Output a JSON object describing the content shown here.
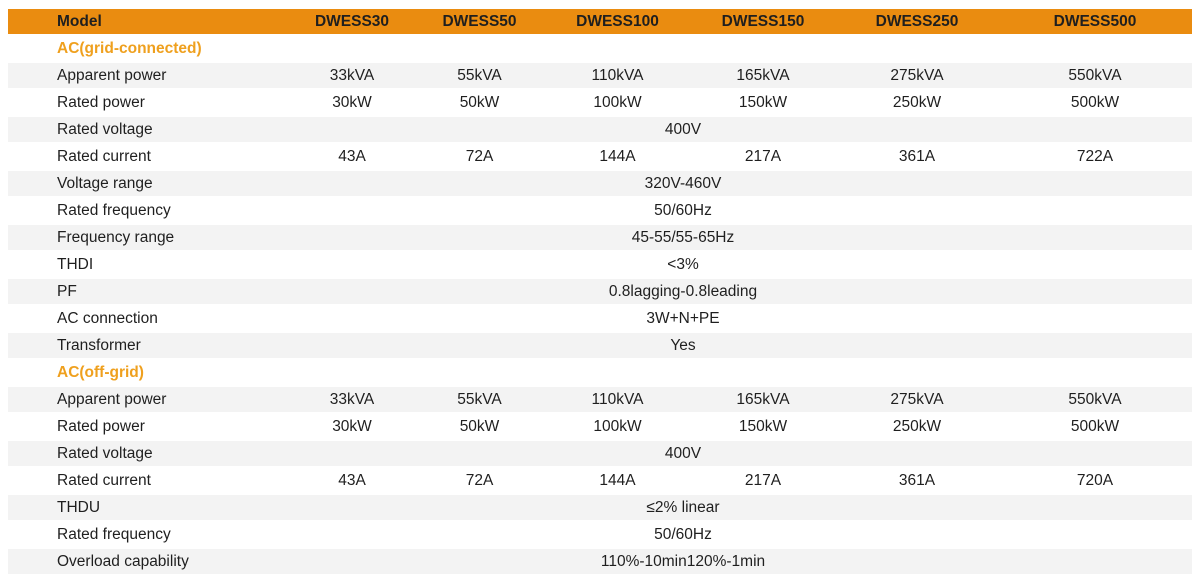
{
  "table": {
    "accent_color": "#EA8C10",
    "section_title_color": "#EFA01E",
    "stripe_color": "#F3F3F3",
    "header": {
      "model_label": "Model",
      "columns": [
        "DWESS30",
        "DWESS50",
        "DWESS100",
        "DWESS150",
        "DWESS250",
        "DWESS500"
      ]
    },
    "sections": [
      {
        "title": "AC(grid-connected)",
        "rows": [
          {
            "label": "Apparent power",
            "values": [
              "33kVA",
              "55kVA",
              "110kVA",
              "165kVA",
              "275kVA",
              "550kVA"
            ]
          },
          {
            "label": "Rated power",
            "values": [
              "30kW",
              "50kW",
              "100kW",
              "150kW",
              "250kW",
              "500kW"
            ]
          },
          {
            "label": "Rated voltage",
            "merged": "400V"
          },
          {
            "label": "Rated current",
            "values": [
              "43A",
              "72A",
              "144A",
              "217A",
              "361A",
              "722A"
            ]
          },
          {
            "label": "Voltage range",
            "merged": "320V-460V"
          },
          {
            "label": "Rated frequency",
            "merged": "50/60Hz"
          },
          {
            "label": "Frequency range",
            "merged": "45-55/55-65Hz"
          },
          {
            "label": "THDI",
            "merged": "<3%"
          },
          {
            "label": "PF",
            "merged": "0.8lagging-0.8leading"
          },
          {
            "label": "AC connection",
            "merged": "3W+N+PE"
          },
          {
            "label": "Transformer",
            "merged": "Yes"
          }
        ]
      },
      {
        "title": "AC(off-grid)",
        "rows": [
          {
            "label": "Apparent power",
            "values": [
              "33kVA",
              "55kVA",
              "110kVA",
              "165kVA",
              "275kVA",
              "550kVA"
            ]
          },
          {
            "label": "Rated power",
            "values": [
              "30kW",
              "50kW",
              "100kW",
              "150kW",
              "250kW",
              "500kW"
            ]
          },
          {
            "label": "Rated voltage",
            "merged": "400V"
          },
          {
            "label": "Rated current",
            "values": [
              "43A",
              "72A",
              "144A",
              "217A",
              "361A",
              "720A"
            ]
          },
          {
            "label": "THDU",
            "merged": "≤2% linear"
          },
          {
            "label": "Rated frequency",
            "merged": "50/60Hz"
          },
          {
            "label": "Overload capability",
            "merged": "110%-10min120%-1min"
          }
        ]
      }
    ]
  }
}
